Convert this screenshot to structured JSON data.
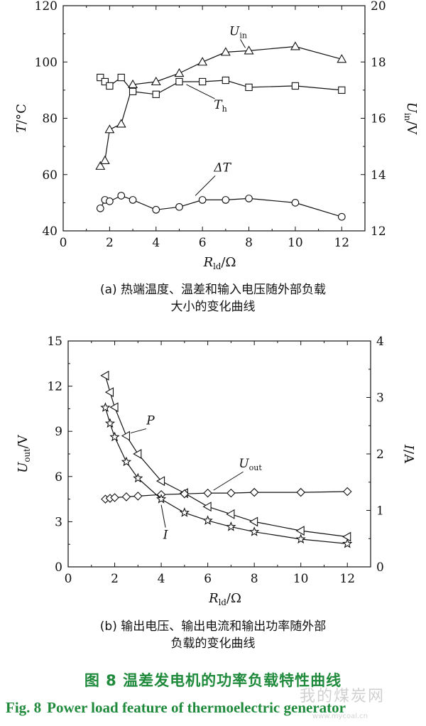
{
  "chart_data": [
    {
      "type": "line",
      "subplot_label": "(a)",
      "caption_line1": "(a)  热端温度、温差和输入电压随外部负载",
      "caption_line2": "大小的变化曲线",
      "xlabel_main": "R",
      "xlabel_sub": "ld",
      "xlabel_unit": "/Ω",
      "ylabel_left": "T/°C",
      "ylabel_right_main": "U",
      "ylabel_right_sub": "in",
      "ylabel_right_unit": "/V",
      "xlim": [
        0,
        13
      ],
      "ylim_left": [
        40,
        120
      ],
      "ylim_right": [
        12,
        20
      ],
      "xticks": [
        "0",
        "2",
        "4",
        "6",
        "8",
        "10",
        "12"
      ],
      "yticks_left": [
        "40",
        "60",
        "80",
        "100",
        "120"
      ],
      "yticks_right": [
        "12",
        "14",
        "16",
        "18",
        "20"
      ],
      "series": [
        {
          "name": "U",
          "name_sub": "in",
          "axis": "right",
          "marker": "triangle",
          "x": [
            1.6,
            1.8,
            2.0,
            2.5,
            3.0,
            4.0,
            5.0,
            6.0,
            7.0,
            8.0,
            10.0,
            12.0
          ],
          "y": [
            14.3,
            14.5,
            15.6,
            15.8,
            17.2,
            17.3,
            17.6,
            18.0,
            18.35,
            18.4,
            18.55,
            18.1
          ]
        },
        {
          "name": "T",
          "name_sub": "h",
          "axis": "left",
          "marker": "square",
          "x": [
            1.6,
            1.8,
            2.0,
            2.5,
            3.0,
            4.0,
            5.0,
            6.0,
            7.0,
            8.0,
            10.0,
            12.0
          ],
          "y": [
            94.5,
            93.0,
            91.5,
            94.5,
            89.5,
            88.5,
            93.0,
            93.0,
            93.5,
            91.0,
            91.5,
            90.0
          ]
        },
        {
          "name": "ΔT",
          "name_sub": "",
          "axis": "left",
          "marker": "circle",
          "x": [
            1.6,
            1.8,
            2.0,
            2.5,
            3.0,
            4.0,
            5.0,
            6.0,
            7.0,
            8.0,
            10.0,
            12.0
          ],
          "y": [
            48.0,
            51.0,
            50.5,
            52.5,
            51.0,
            47.5,
            48.5,
            51.0,
            51.0,
            51.5,
            50.0,
            45.0
          ]
        }
      ]
    },
    {
      "type": "line",
      "subplot_label": "(b)",
      "caption_line1": "(b)  输出电压、输出电流和输出功率随外部",
      "caption_line2": "负载的变化曲线",
      "xlabel_main": "R",
      "xlabel_sub": "ld",
      "xlabel_unit": "/Ω",
      "ylabel_left_main": "U",
      "ylabel_left_sub": "out",
      "ylabel_left_unit": "/V",
      "ylabel_right": "I/A",
      "xlim": [
        0,
        13
      ],
      "ylim_left": [
        0,
        15
      ],
      "ylim_right": [
        0,
        4
      ],
      "xticks": [
        "0",
        "2",
        "4",
        "6",
        "8",
        "10",
        "12"
      ],
      "yticks_left": [
        "0",
        "3",
        "6",
        "9",
        "12",
        "15"
      ],
      "yticks_right": [
        "0",
        "1",
        "2",
        "3",
        "4"
      ],
      "series": [
        {
          "name": "P",
          "name_sub": "",
          "axis": "left",
          "marker": "triangle-left",
          "x": [
            1.6,
            1.8,
            2.0,
            2.5,
            3.0,
            4.0,
            5.0,
            6.0,
            7.0,
            8.0,
            10.0,
            12.0
          ],
          "y": [
            12.7,
            11.6,
            10.6,
            8.7,
            7.5,
            5.7,
            4.9,
            4.0,
            3.5,
            3.0,
            2.4,
            2.0
          ]
        },
        {
          "name": "U",
          "name_sub": "out",
          "axis": "left",
          "marker": "diamond",
          "x": [
            1.6,
            1.8,
            2.0,
            2.5,
            3.0,
            4.0,
            5.0,
            6.0,
            7.0,
            8.0,
            10.0,
            12.0
          ],
          "y": [
            4.5,
            4.55,
            4.6,
            4.65,
            4.7,
            4.8,
            4.85,
            4.9,
            4.9,
            4.95,
            4.95,
            5.0
          ]
        },
        {
          "name": "I",
          "name_sub": "",
          "axis": "right",
          "marker": "star",
          "x": [
            1.6,
            1.8,
            2.0,
            2.5,
            3.0,
            4.0,
            5.0,
            6.0,
            7.0,
            8.0,
            10.0,
            12.0
          ],
          "y": [
            2.82,
            2.54,
            2.3,
            1.86,
            1.57,
            1.2,
            0.96,
            0.82,
            0.71,
            0.62,
            0.49,
            0.41
          ]
        }
      ]
    }
  ],
  "figure": {
    "title_cn": "图 8    温差发电机的功率负载特性曲线",
    "title_en_label": "Fig. 8",
    "title_en_text": "Power load feature of thermoelectric generator",
    "watermark_text": "我的煤炭网",
    "watermark_url": "www.mycoal.cn"
  }
}
